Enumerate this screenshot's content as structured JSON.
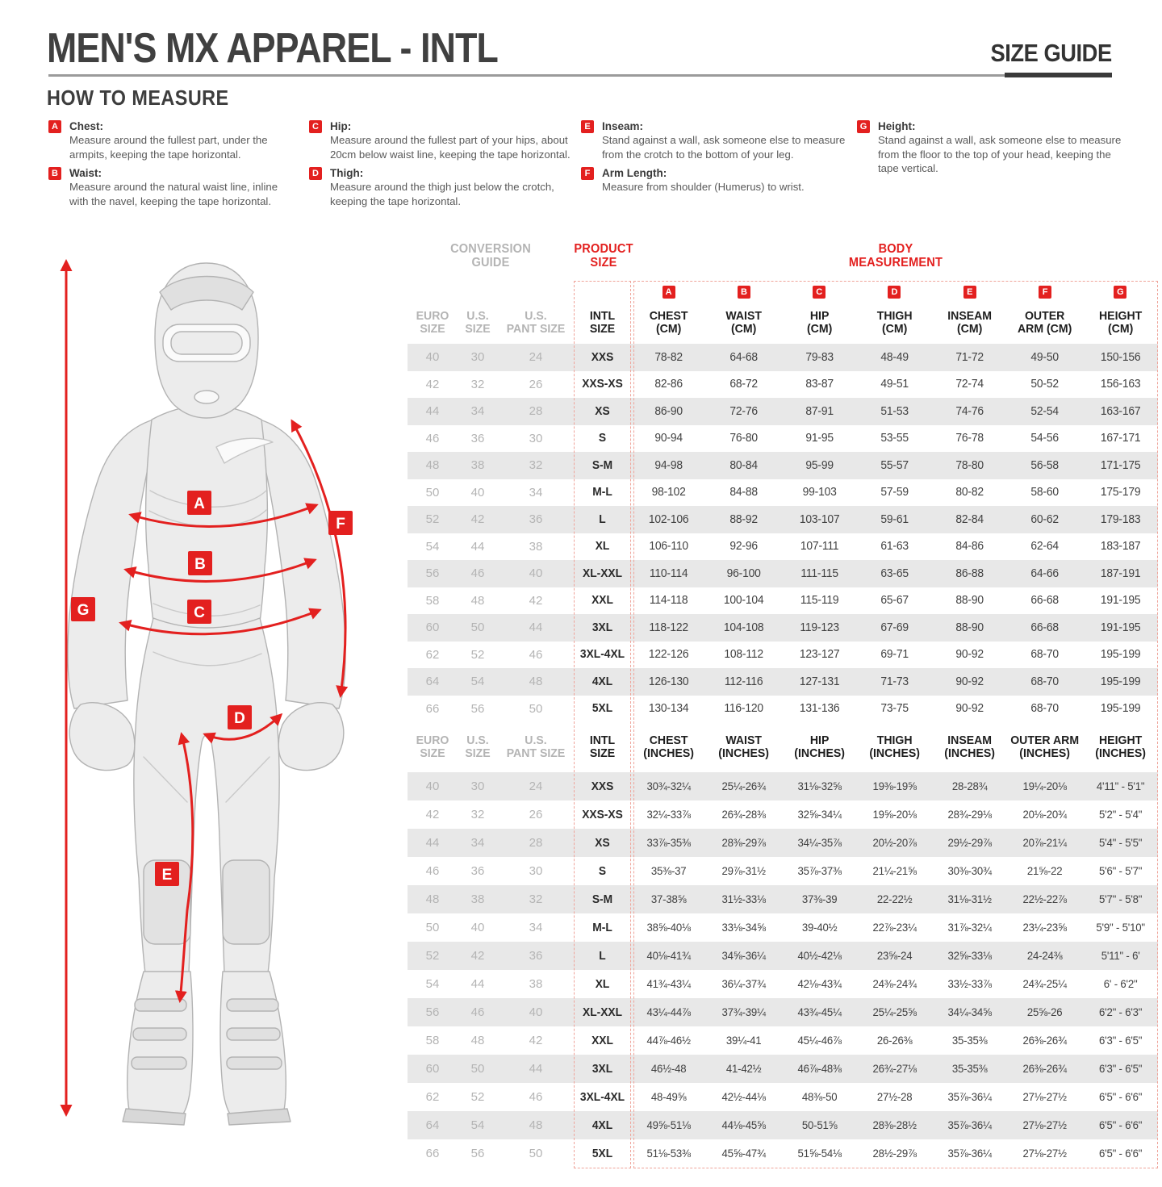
{
  "header": {
    "title": "MEN'S MX APPAREL - INTL",
    "badge": "SIZE GUIDE"
  },
  "how_to_measure": {
    "heading": "HOW TO MEASURE",
    "items": [
      {
        "letter": "A",
        "label": "Chest:",
        "text": "Measure around the fullest part, under the armpits, keeping the tape horizontal."
      },
      {
        "letter": "B",
        "label": "Waist:",
        "text": "Measure around the natural waist line, inline with the navel, keeping the tape horizontal."
      },
      {
        "letter": "C",
        "label": "Hip:",
        "text": "Measure around the fullest part of your hips, about 20cm below waist line, keeping the tape horizontal."
      },
      {
        "letter": "D",
        "label": "Thigh:",
        "text": "Measure around the thigh just below the crotch, keeping the tape horizontal."
      },
      {
        "letter": "E",
        "label": "Inseam:",
        "text": "Stand against a wall, ask someone else to measure from the crotch to the bottom of your leg."
      },
      {
        "letter": "F",
        "label": "Arm Length:",
        "text": "Measure from shoulder (Humerus) to wrist."
      },
      {
        "letter": "G",
        "label": "Height:",
        "text": "Stand against a wall, ask someone else to measure from the floor to the top of your head, keeping the tape vertical."
      }
    ]
  },
  "figure": {
    "labels": [
      "A",
      "B",
      "C",
      "D",
      "E",
      "F",
      "G"
    ]
  },
  "table": {
    "group_headers": {
      "conversion": "CONVERSION\nGUIDE",
      "product": "PRODUCT\nSIZE",
      "body": "BODY\nMEASUREMENT"
    },
    "letters": [
      "A",
      "B",
      "C",
      "D",
      "E",
      "F",
      "G"
    ],
    "cm": {
      "columns": [
        "EURO\nSIZE",
        "U.S.\nSIZE",
        "U.S.\nPANT SIZE",
        "INTL\nSIZE",
        "CHEST\n(CM)",
        "WAIST\n(CM)",
        "HIP\n(CM)",
        "THIGH\n(CM)",
        "INSEAM\n(CM)",
        "OUTER\nARM (CM)",
        "HEIGHT\n(CM)"
      ],
      "rows": [
        [
          "40",
          "30",
          "24",
          "XXS",
          "78-82",
          "64-68",
          "79-83",
          "48-49",
          "71-72",
          "49-50",
          "150-156"
        ],
        [
          "42",
          "32",
          "26",
          "XXS-XS",
          "82-86",
          "68-72",
          "83-87",
          "49-51",
          "72-74",
          "50-52",
          "156-163"
        ],
        [
          "44",
          "34",
          "28",
          "XS",
          "86-90",
          "72-76",
          "87-91",
          "51-53",
          "74-76",
          "52-54",
          "163-167"
        ],
        [
          "46",
          "36",
          "30",
          "S",
          "90-94",
          "76-80",
          "91-95",
          "53-55",
          "76-78",
          "54-56",
          "167-171"
        ],
        [
          "48",
          "38",
          "32",
          "S-M",
          "94-98",
          "80-84",
          "95-99",
          "55-57",
          "78-80",
          "56-58",
          "171-175"
        ],
        [
          "50",
          "40",
          "34",
          "M-L",
          "98-102",
          "84-88",
          "99-103",
          "57-59",
          "80-82",
          "58-60",
          "175-179"
        ],
        [
          "52",
          "42",
          "36",
          "L",
          "102-106",
          "88-92",
          "103-107",
          "59-61",
          "82-84",
          "60-62",
          "179-183"
        ],
        [
          "54",
          "44",
          "38",
          "XL",
          "106-110",
          "92-96",
          "107-111",
          "61-63",
          "84-86",
          "62-64",
          "183-187"
        ],
        [
          "56",
          "46",
          "40",
          "XL-XXL",
          "110-114",
          "96-100",
          "111-115",
          "63-65",
          "86-88",
          "64-66",
          "187-191"
        ],
        [
          "58",
          "48",
          "42",
          "XXL",
          "114-118",
          "100-104",
          "115-119",
          "65-67",
          "88-90",
          "66-68",
          "191-195"
        ],
        [
          "60",
          "50",
          "44",
          "3XL",
          "118-122",
          "104-108",
          "119-123",
          "67-69",
          "88-90",
          "66-68",
          "191-195"
        ],
        [
          "62",
          "52",
          "46",
          "3XL-4XL",
          "122-126",
          "108-112",
          "123-127",
          "69-71",
          "90-92",
          "68-70",
          "195-199"
        ],
        [
          "64",
          "54",
          "48",
          "4XL",
          "126-130",
          "112-116",
          "127-131",
          "71-73",
          "90-92",
          "68-70",
          "195-199"
        ],
        [
          "66",
          "56",
          "50",
          "5XL",
          "130-134",
          "116-120",
          "131-136",
          "73-75",
          "90-92",
          "68-70",
          "195-199"
        ]
      ]
    },
    "inches": {
      "columns": [
        "EURO\nSIZE",
        "U.S.\nSIZE",
        "U.S.\nPANT SIZE",
        "INTL\nSIZE",
        "CHEST\n(INCHES)",
        "WAIST\n(INCHES)",
        "HIP\n(INCHES)",
        "THIGH\n(INCHES)",
        "INSEAM\n(INCHES)",
        "OUTER ARM\n(INCHES)",
        "HEIGHT\n(INCHES)"
      ],
      "rows": [
        [
          "40",
          "30",
          "24",
          "XXS",
          "30¾-32¼",
          "25¼-26¾",
          "31⅛-32⅝",
          "19⅜-19⅝",
          "28-28¾",
          "19¼-20⅛",
          "4'11\" - 5'1\""
        ],
        [
          "42",
          "32",
          "26",
          "XXS-XS",
          "32¼-33⅞",
          "26¾-28⅜",
          "32⅝-34¼",
          "19⅝-20⅛",
          "28¾-29⅛",
          "20⅛-20¾",
          "5'2\" - 5'4\""
        ],
        [
          "44",
          "34",
          "28",
          "XS",
          "33⅞-35⅜",
          "28⅜-29⅞",
          "34¼-35⅞",
          "20½-20⅞",
          "29½-29⅞",
          "20⅞-21¼",
          "5'4\" - 5'5\""
        ],
        [
          "46",
          "36",
          "30",
          "S",
          "35⅜-37",
          "29⅞-31½",
          "35⅞-37⅜",
          "21¼-21⅝",
          "30⅜-30¾",
          "21⅝-22",
          "5'6\" - 5'7\""
        ],
        [
          "48",
          "38",
          "32",
          "S-M",
          "37-38⅝",
          "31½-33⅛",
          "37⅜-39",
          "22-22½",
          "31⅛-31½",
          "22½-22⅞",
          "5'7\" - 5'8\""
        ],
        [
          "50",
          "40",
          "34",
          "M-L",
          "38⅝-40⅛",
          "33⅛-34⅝",
          "39-40½",
          "22⅞-23¼",
          "31⅞-32¼",
          "23¼-23⅝",
          "5'9\" - 5'10\""
        ],
        [
          "52",
          "42",
          "36",
          "L",
          "40⅛-41¾",
          "34⅝-36¼",
          "40½-42⅛",
          "23⅝-24",
          "32⅝-33⅛",
          "24-24⅜",
          "5'11\" - 6'"
        ],
        [
          "54",
          "44",
          "38",
          "XL",
          "41¾-43¼",
          "36¼-37¾",
          "42⅛-43¾",
          "24⅜-24¾",
          "33½-33⅞",
          "24¾-25¼",
          "6' - 6'2\""
        ],
        [
          "56",
          "46",
          "40",
          "XL-XXL",
          "43¼-44⅞",
          "37¾-39¼",
          "43¾-45¼",
          "25¼-25⅝",
          "34¼-34⅝",
          "25⅝-26",
          "6'2\" - 6'3\""
        ],
        [
          "58",
          "48",
          "42",
          "XXL",
          "44⅞-46½",
          "39¼-41",
          "45¼-46⅞",
          "26-26⅜",
          "35-35⅜",
          "26⅜-26¾",
          "6'3\" - 6'5\""
        ],
        [
          "60",
          "50",
          "44",
          "3XL",
          "46½-48",
          "41-42½",
          "46⅞-48⅜",
          "26¾-27⅛",
          "35-35⅜",
          "26⅜-26¾",
          "6'3\" - 6'5\""
        ],
        [
          "62",
          "52",
          "46",
          "3XL-4XL",
          "48-49⅝",
          "42½-44⅛",
          "48⅜-50",
          "27½-28",
          "35⅞-36¼",
          "27⅛-27½",
          "6'5\" - 6'6\""
        ],
        [
          "64",
          "54",
          "48",
          "4XL",
          "49⅝-51⅛",
          "44⅛-45⅝",
          "50-51⅝",
          "28⅜-28½",
          "35⅞-36¼",
          "27⅛-27½",
          "6'5\" - 6'6\""
        ],
        [
          "66",
          "56",
          "50",
          "5XL",
          "51⅛-53⅜",
          "45⅝-47¾",
          "51⅝-54⅛",
          "28½-29⅞",
          "35⅞-36¼",
          "27⅛-27½",
          "6'5\" - 6'6\""
        ]
      ]
    }
  },
  "colors": {
    "accent_red": "#e3201f",
    "dashed_border": "#efa49a",
    "row_stripe": "#e8e8e8",
    "muted_gray": "#b4b4b4",
    "text_dark": "#414141"
  }
}
